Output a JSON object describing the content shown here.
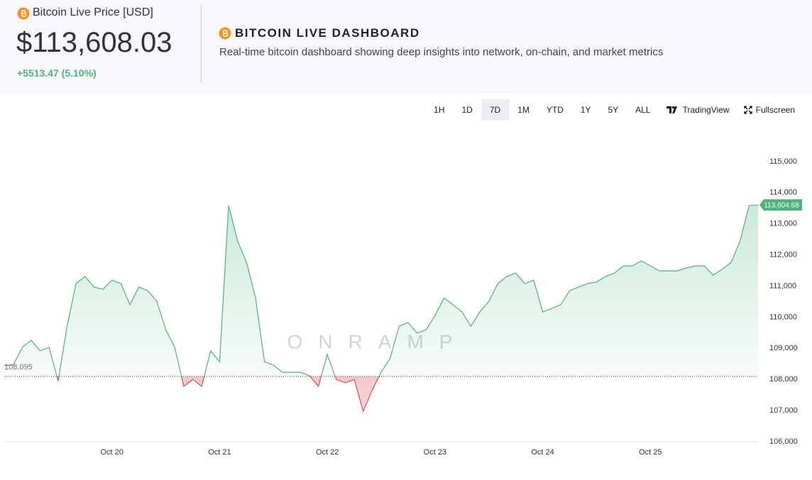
{
  "header": {
    "title": "Bitcoin Live Price [USD]",
    "price": "$113,608.03",
    "change": "+5513.47 (5.10%)",
    "dashboard_title": "BITCOIN LIVE DASHBOARD",
    "subtitle": "Real-time bitcoin dashboard showing deep insights into network, on-chain, and market metrics"
  },
  "toolbar": {
    "ranges": [
      "1H",
      "1D",
      "7D",
      "1M",
      "YTD",
      "1Y",
      "5Y",
      "ALL"
    ],
    "active_range": "7D",
    "tradingview": "TradingView",
    "fullscreen": "Fullscreen"
  },
  "chart_data": {
    "type": "baseline-area",
    "watermark": "ONRAMP",
    "categories": [
      null,
      null,
      null,
      null,
      null,
      null,
      null,
      null,
      null,
      null,
      null,
      null,
      "Oct 20",
      null,
      null,
      null,
      null,
      null,
      null,
      null,
      null,
      null,
      null,
      null,
      "Oct 21",
      null,
      null,
      null,
      null,
      null,
      null,
      null,
      null,
      null,
      null,
      null,
      "Oct 22",
      null,
      null,
      null,
      null,
      null,
      null,
      null,
      null,
      null,
      null,
      null,
      "Oct 23",
      null,
      null,
      null,
      null,
      null,
      null,
      null,
      null,
      null,
      null,
      null,
      "Oct 24",
      null,
      null,
      null,
      null,
      null,
      null,
      null,
      null,
      null,
      null,
      null,
      "Oct 25",
      null,
      null,
      null,
      null,
      null,
      null,
      null,
      null,
      null,
      null,
      null,
      null
    ],
    "series": [
      {
        "name": "BTC",
        "color": "#4cb37a",
        "color_below": "#d94b4b",
        "values": [
          108450,
          108460,
          109030,
          109260,
          108920,
          109030,
          107950,
          109710,
          111080,
          111310,
          110970,
          110900,
          111190,
          111080,
          110400,
          110970,
          110850,
          110510,
          109600,
          109030,
          107780,
          108000,
          107780,
          108920,
          108570,
          113590,
          112450,
          111760,
          110620,
          108570,
          108460,
          108230,
          108230,
          108230,
          108120,
          107780,
          108800,
          108000,
          107890,
          108000,
          106980,
          107660,
          108230,
          108680,
          109710,
          109830,
          109490,
          109600,
          110050,
          110620,
          110400,
          110170,
          109710,
          110170,
          110510,
          111080,
          111310,
          111420,
          111080,
          111190,
          110170,
          110280,
          110400,
          110850,
          110970,
          111080,
          111130,
          111310,
          111420,
          111650,
          111650,
          111810,
          111650,
          111490,
          111490,
          111490,
          111580,
          111650,
          111650,
          111350,
          111540,
          111760,
          112450,
          113590,
          113604.68
        ]
      }
    ],
    "baseline": {
      "value": 108095,
      "label": "108,095"
    },
    "last_value": {
      "value": 113604.68,
      "label": "113,604.68"
    },
    "ylim": [
      106000,
      116000
    ],
    "yticks": [
      {
        "value": 106000,
        "label": "106,000"
      },
      {
        "value": 107000,
        "label": "107,000"
      },
      {
        "value": 108000,
        "label": "108,000"
      },
      {
        "value": 109000,
        "label": "109,000"
      },
      {
        "value": 110000,
        "label": "110,000"
      },
      {
        "value": 111000,
        "label": "111,000"
      },
      {
        "value": 112000,
        "label": "112,000"
      },
      {
        "value": 113000,
        "label": "113,000"
      },
      {
        "value": 114000,
        "label": "114,000"
      },
      {
        "value": 115000,
        "label": "115,000"
      }
    ],
    "grid": false
  }
}
